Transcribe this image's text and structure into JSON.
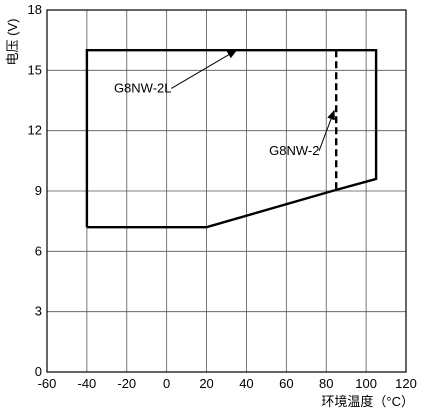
{
  "chart_data": {
    "type": "line",
    "title": "",
    "xlabel": "环境温度（°C）",
    "ylabel": "电压 (V)",
    "xlim": [
      -60,
      120
    ],
    "ylim": [
      0,
      18
    ],
    "x_ticks": [
      -60,
      -40,
      -20,
      0,
      20,
      40,
      60,
      80,
      100,
      120
    ],
    "y_ticks": [
      0,
      3,
      6,
      9,
      12,
      15,
      18
    ],
    "grid": true,
    "series": [
      {
        "label": "G8NW-2L",
        "style": "solid",
        "points": [
          [
            -40,
            7.2
          ],
          [
            -40,
            16
          ],
          [
            105,
            16
          ],
          [
            105,
            9.6
          ],
          [
            83,
            9
          ],
          [
            20,
            7.2
          ],
          [
            -40,
            7.2
          ]
        ]
      },
      {
        "label": "G8NW-2",
        "style": "dashed",
        "points": [
          [
            85,
            16
          ],
          [
            85,
            9.1
          ]
        ]
      }
    ],
    "annotations": [
      {
        "text": "G8NW-2L",
        "label_at": [
          -12,
          13.9
        ],
        "arrow_to": [
          35,
          16
        ]
      },
      {
        "text": "G8NW-2",
        "label_at": [
          64,
          10.8
        ],
        "arrow_to": [
          84,
          13
        ]
      }
    ]
  }
}
